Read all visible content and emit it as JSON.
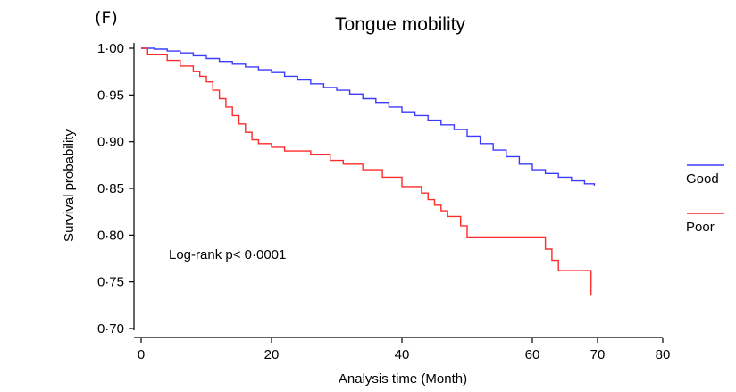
{
  "panel_label": "(F)",
  "chart_data": {
    "type": "line",
    "step": true,
    "title": "Tongue mobility",
    "xlabel": "Analysis time (Month)",
    "ylabel": "Survival probability",
    "xlim": [
      0,
      80
    ],
    "ylim": [
      0.7,
      1.0
    ],
    "xticks": [
      {
        "value": 0,
        "label": "0"
      },
      {
        "value": 20,
        "label": "20"
      },
      {
        "value": 40,
        "label": "40"
      },
      {
        "value": 60,
        "label": "60"
      },
      {
        "value": 70,
        "label": "70"
      },
      {
        "value": 80,
        "label": "80"
      }
    ],
    "yticks": [
      {
        "value": 1.0,
        "label": "1·00"
      },
      {
        "value": 0.95,
        "label": "0·95"
      },
      {
        "value": 0.9,
        "label": "0·90"
      },
      {
        "value": 0.85,
        "label": "0·85"
      },
      {
        "value": 0.8,
        "label": "0·80"
      },
      {
        "value": 0.75,
        "label": "0·75"
      },
      {
        "value": 0.7,
        "label": "0·70"
      }
    ],
    "grid": false,
    "legend_position": "right",
    "annotation": "Log-rank p< 0·0001",
    "series": [
      {
        "name": "Good",
        "color": "#3b3bff",
        "x": [
          0,
          2,
          4,
          6,
          8,
          10,
          12,
          14,
          16,
          18,
          20,
          22,
          24,
          26,
          28,
          30,
          32,
          34,
          36,
          38,
          40,
          42,
          44,
          46,
          48,
          50,
          52,
          54,
          56,
          58,
          60,
          62,
          64,
          66,
          68,
          69.5
        ],
        "y": [
          1.0,
          0.999,
          0.997,
          0.995,
          0.992,
          0.989,
          0.986,
          0.983,
          0.98,
          0.977,
          0.974,
          0.97,
          0.966,
          0.962,
          0.958,
          0.955,
          0.951,
          0.946,
          0.942,
          0.937,
          0.932,
          0.928,
          0.923,
          0.918,
          0.913,
          0.906,
          0.898,
          0.891,
          0.884,
          0.876,
          0.87,
          0.866,
          0.862,
          0.858,
          0.855,
          0.853
        ]
      },
      {
        "name": "Poor",
        "color": "#ff2a2a",
        "x": [
          0,
          1,
          4,
          6,
          8,
          9,
          10,
          11,
          12,
          13,
          14,
          15,
          16,
          17,
          18,
          20,
          22,
          26,
          29,
          31,
          34,
          37,
          40,
          43,
          44,
          45,
          46,
          47,
          49,
          50,
          62,
          63,
          64,
          69
        ],
        "y": [
          1.0,
          0.993,
          0.987,
          0.981,
          0.975,
          0.97,
          0.964,
          0.955,
          0.946,
          0.937,
          0.928,
          0.919,
          0.91,
          0.902,
          0.898,
          0.894,
          0.89,
          0.886,
          0.88,
          0.876,
          0.87,
          0.862,
          0.852,
          0.845,
          0.838,
          0.832,
          0.826,
          0.82,
          0.81,
          0.798,
          0.785,
          0.773,
          0.762,
          0.736
        ]
      }
    ]
  }
}
